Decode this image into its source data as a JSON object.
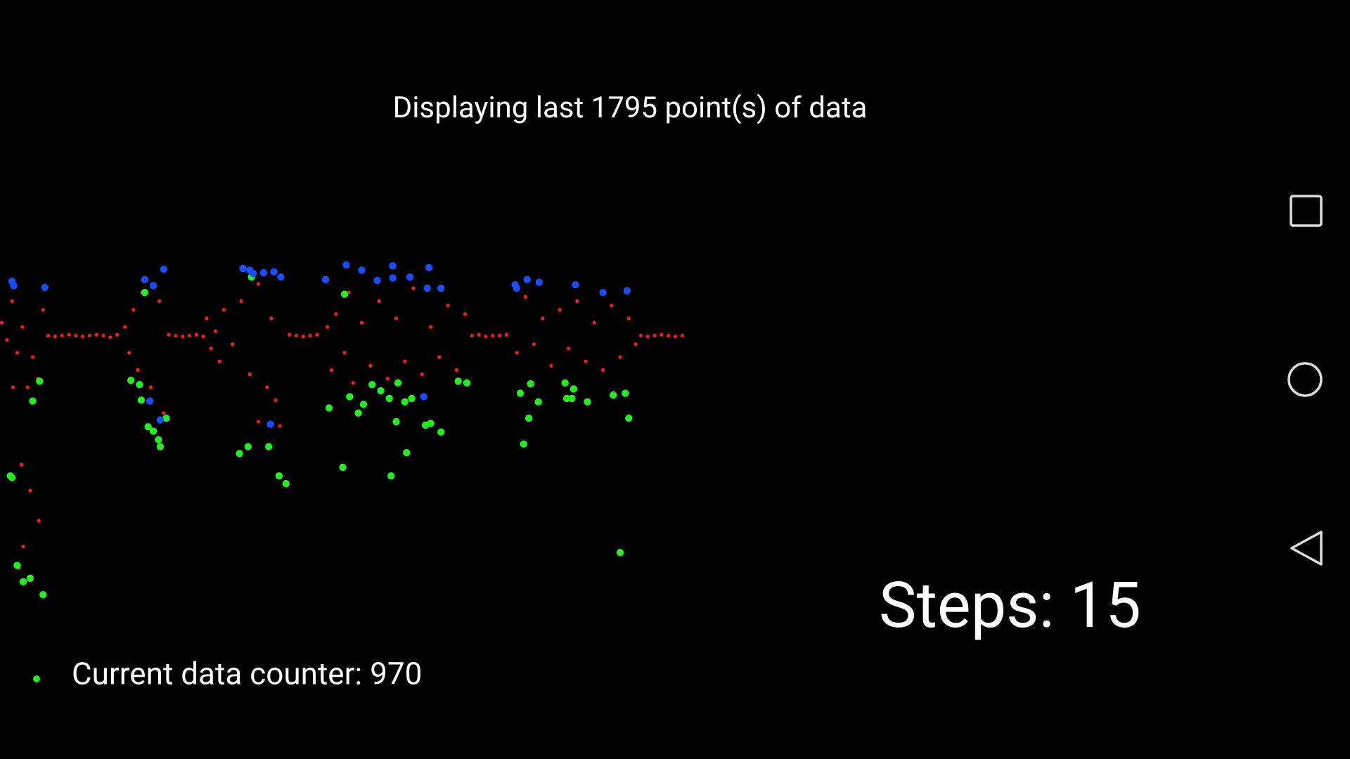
{
  "chart_data": {
    "type": "scatter",
    "title": "Displaying last 1795 point(s) of data",
    "xlim": [
      0,
      800
    ],
    "ylim": [
      -300,
      300
    ],
    "series": [
      {
        "color": "#ff1a1a",
        "x": [
          56,
          64,
          72,
          80,
          88,
          96,
          104,
          112,
          120,
          128,
          136,
          196,
          204,
          212,
          220,
          228,
          236,
          336,
          344,
          352,
          360,
          368,
          548,
          556,
          564,
          572,
          580,
          588,
          744,
          752,
          760,
          768,
          776,
          784,
          792,
          2,
          8,
          14,
          20,
          26,
          32,
          38,
          44,
          50,
          15,
          25,
          35,
          45,
          27,
          22,
          145,
          150,
          155,
          160,
          165,
          175,
          185,
          190,
          240,
          245,
          250,
          255,
          260,
          270,
          280,
          290,
          300,
          310,
          315,
          320,
          325,
          300,
          380,
          385,
          390,
          400,
          405,
          410,
          420,
          430,
          440,
          450,
          460,
          470,
          480,
          490,
          500,
          510,
          520,
          530,
          540,
          600,
          610,
          620,
          630,
          640,
          650,
          660,
          670,
          680,
          690,
          700,
          710,
          720,
          730,
          738
        ],
        "values": [
          0,
          -1,
          0,
          1,
          0,
          -1,
          0,
          1,
          0,
          -2,
          1,
          1,
          0,
          -1,
          0,
          1,
          -1,
          1,
          0,
          -1,
          0,
          1,
          0,
          1,
          -1,
          0,
          0,
          1,
          0,
          -1,
          0,
          1,
          0,
          -1,
          0,
          15,
          -5,
          40,
          -20,
          10,
          -60,
          -25,
          -50,
          30,
          -60,
          -150,
          -180,
          -215,
          -245,
          -270,
          10,
          -20,
          30,
          -40,
          50,
          -60,
          40,
          -90,
          20,
          -15,
          5,
          -30,
          30,
          -10,
          40,
          -45,
          60,
          -60,
          20,
          -75,
          -105,
          -100,
          10,
          -40,
          25,
          -20,
          50,
          -55,
          15,
          -35,
          40,
          -50,
          20,
          -30,
          55,
          -45,
          10,
          -25,
          35,
          -40,
          25,
          -20,
          45,
          -10,
          20,
          -35,
          30,
          -15,
          40,
          -30,
          15,
          -40,
          35,
          -25,
          20,
          -10
        ]
      },
      {
        "color": "#22ee22",
        "x": [
          14,
          20,
          27,
          35,
          50,
          38,
          46,
          12,
          168,
          152,
          162,
          164,
          172,
          178,
          184,
          186,
          193,
          292,
          278,
          288,
          312,
          324,
          332,
          400,
          382,
          398,
          406,
          416,
          422,
          432,
          442,
          452,
          462,
          460,
          470,
          472,
          454,
          478,
          494,
          500,
          512,
          532,
          542,
          604,
          608,
          614,
          616,
          625,
          656,
          658,
          666,
          664,
          682,
          712,
          726,
          730,
          720
        ],
        "values": [
          -165,
          -267,
          -286,
          -282,
          -301,
          -76,
          -53,
          -163,
          50,
          -52,
          -57,
          -75,
          -106,
          -111,
          -121,
          -129,
          -96,
          68,
          -137,
          -129,
          -129,
          -163,
          -172,
          48,
          -84,
          -153,
          -71,
          -90,
          -80,
          -57,
          -64,
          -73,
          -55,
          -100,
          -77,
          -136,
          -163,
          -73,
          -104,
          -102,
          -112,
          -53,
          -55,
          -67,
          -126,
          -96,
          -56,
          -77,
          -55,
          -73,
          -62,
          -73,
          -77,
          -69,
          -67,
          -96,
          -252
        ]
      },
      {
        "color": "#1a4dff",
        "x": [
          14,
          16,
          52,
          168,
          178,
          190,
          282,
          290,
          294,
          306,
          318,
          326,
          314,
          174,
          186,
          378,
          402,
          420,
          438,
          456,
          476,
          498,
          456,
          496,
          512,
          598,
          600,
          612,
          626,
          668,
          700,
          728,
          492
        ],
        "values": [
          63,
          58,
          56,
          65,
          58,
          77,
          78,
          76,
          72,
          73,
          74,
          68,
          -103,
          -76,
          -98,
          65,
          82,
          76,
          64,
          81,
          68,
          79,
          67,
          55,
          55,
          59,
          55,
          65,
          62,
          59,
          50,
          52,
          -71
        ]
      }
    ]
  },
  "status": {
    "steps": "Steps: 15",
    "counter": "Current data counter: 970"
  }
}
